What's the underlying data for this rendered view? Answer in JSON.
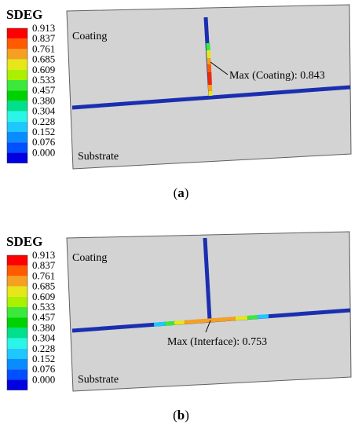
{
  "legend": {
    "title": "SDEG",
    "values": [
      "0.913",
      "0.837",
      "0.761",
      "0.685",
      "0.609",
      "0.533",
      "0.457",
      "0.380",
      "0.304",
      "0.228",
      "0.152",
      "0.076",
      "0.000"
    ],
    "colors": [
      "#ff0000",
      "#ff5a00",
      "#f5a020",
      "#e6e619",
      "#aaf000",
      "#3ce83c",
      "#00d200",
      "#00e08c",
      "#2af5e6",
      "#1ec8ff",
      "#0a8cff",
      "#0050ff",
      "#0000e0"
    ]
  },
  "panels": [
    {
      "id": "a",
      "caption_open": "(",
      "caption_letter": "a",
      "caption_close": ")",
      "coating_label": "Coating",
      "substrate_label": "Substrate",
      "annotation": "Max (Coating): 0.843"
    },
    {
      "id": "b",
      "caption_open": "(",
      "caption_letter": "b",
      "caption_close": ")",
      "coating_label": "Coating",
      "substrate_label": "Substrate",
      "annotation": "Max (Interface): 0.753"
    }
  ],
  "colors": {
    "model_fill": "#d3d3d3",
    "model_edge": "#606060",
    "crack_blue": "#1a2fb0"
  }
}
